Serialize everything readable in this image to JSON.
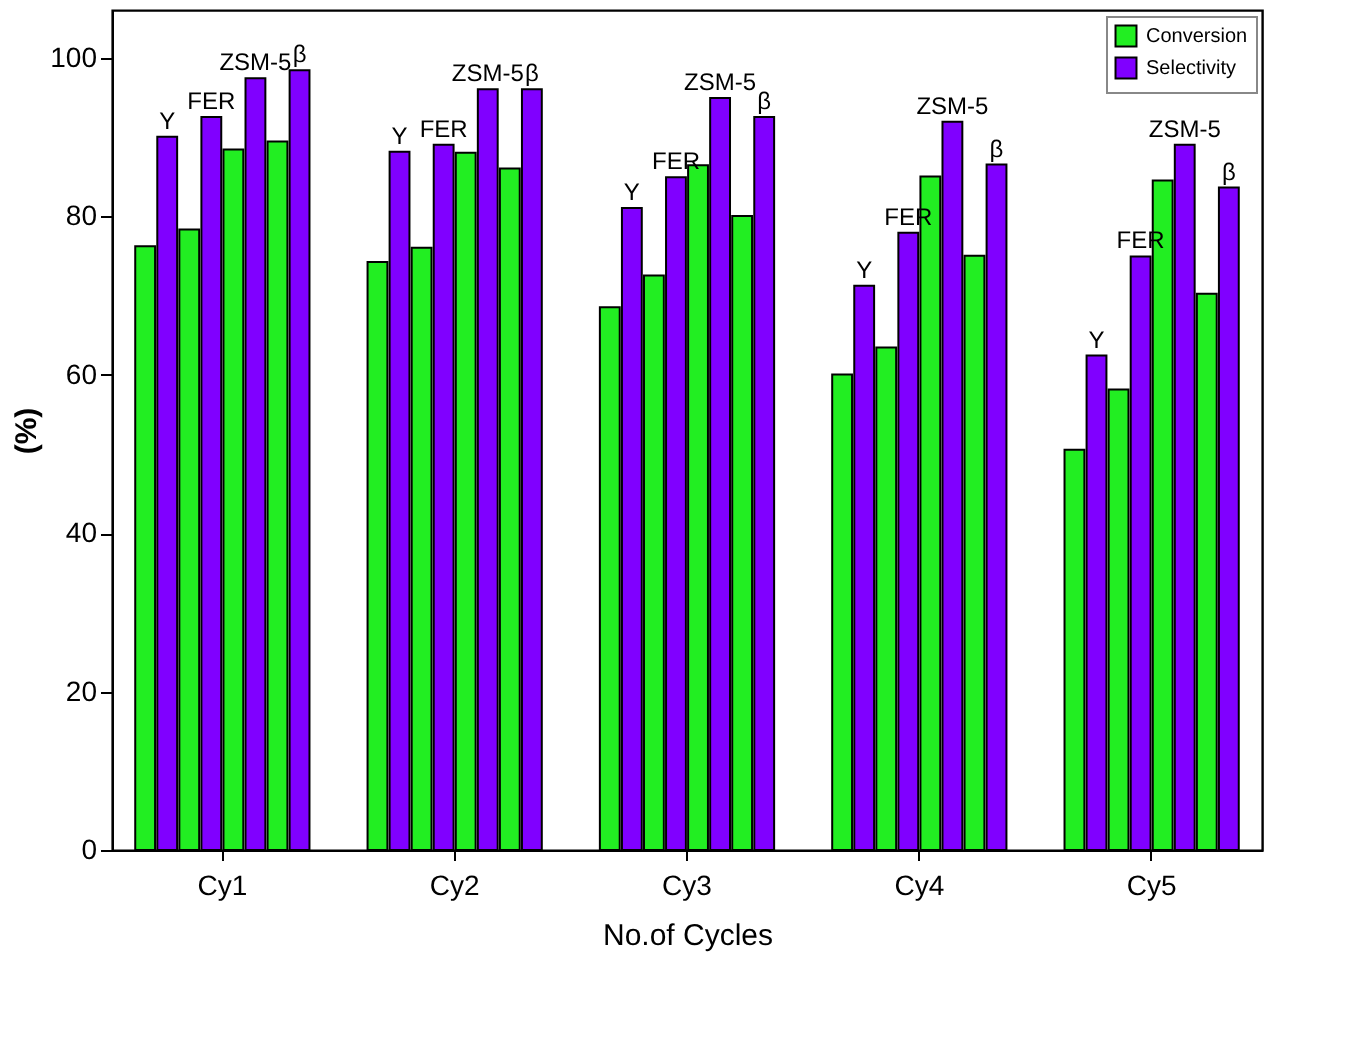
{
  "chart_data": {
    "type": "bar",
    "xlabel": "No.of Cycles",
    "ylabel": "(%)",
    "categories": [
      "Cy1",
      "Cy2",
      "Cy3",
      "Cy4",
      "Cy5"
    ],
    "series": [
      {
        "name": "Conversion",
        "color": "#22ee22",
        "values": [
          76.2,
          74.2,
          68.5,
          60.0,
          50.5
        ]
      },
      {
        "name": "Selectivity",
        "color": "#8000ff",
        "values": [
          90.0,
          88.1,
          81.0,
          71.2,
          62.4
        ]
      },
      {
        "color": "#22ee22",
        "values": [
          78.3,
          76.0,
          72.5,
          63.4,
          58.1
        ]
      },
      {
        "color": "#8000ff",
        "values": [
          92.5,
          89.0,
          84.9,
          77.9,
          74.9
        ]
      },
      {
        "color": "#22ee22",
        "values": [
          88.4,
          88.0,
          86.4,
          85.0,
          84.5
        ]
      },
      {
        "color": "#8000ff",
        "values": [
          97.4,
          96.0,
          94.9,
          91.9,
          89.0
        ]
      },
      {
        "color": "#22ee22",
        "values": [
          89.4,
          86.0,
          80.0,
          75.0,
          70.2
        ]
      },
      {
        "color": "#8000ff",
        "values": [
          98.4,
          96.0,
          92.5,
          86.5,
          83.6
        ]
      }
    ],
    "annotations": [
      "Y",
      "FER",
      "ZSM-5",
      "β",
      "Y",
      "FER",
      "ZSM-5",
      "β",
      "Y",
      "FER",
      "ZSM-5",
      "β",
      "Y",
      "FER",
      "ZSM-5",
      "β",
      "Y",
      "FER",
      "ZSM-5",
      "β"
    ],
    "ylim": [
      0,
      106
    ],
    "yticks": [
      0,
      20,
      40,
      60,
      80,
      100
    ],
    "grid": false,
    "legend": "top right"
  }
}
